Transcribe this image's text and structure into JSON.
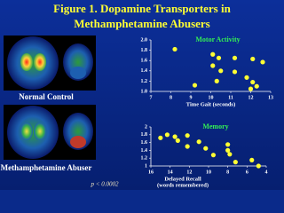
{
  "title": [
    "Figure 1. Dopamine Transporters in",
    "Methamphetamine Abusers"
  ],
  "images": [
    {
      "label": "Normal Control"
    },
    {
      "label": "Methamphetamine Abuser"
    }
  ],
  "footnote": "p < 0.0002",
  "chart_data": [
    {
      "type": "scatter",
      "title": "Motor Activity",
      "xlabel": "Time Gait (seconds)",
      "color": "#ffff33",
      "x": [
        8.2,
        10.1,
        10.4,
        11.2,
        12.1,
        12.6,
        10.1,
        10.5,
        11.2,
        11.8,
        10.3,
        12.1,
        12.3,
        9.2,
        12.0
      ],
      "values": [
        1.82,
        1.72,
        1.65,
        1.65,
        1.63,
        1.57,
        1.5,
        1.4,
        1.38,
        1.27,
        1.2,
        1.18,
        1.1,
        1.12,
        1.05
      ],
      "xlim": [
        7,
        13
      ],
      "xticks": [
        7,
        8,
        9,
        10,
        11,
        12,
        13
      ],
      "ylim": [
        1,
        2
      ],
      "yticks": [
        {
          "value": 1,
          "label": "1.0"
        },
        1.2,
        1.4,
        1.6,
        1.8,
        {
          "value": 2,
          "label": "2.0"
        }
      ]
    },
    {
      "type": "scatter",
      "title": "Memory",
      "xlabel": [
        "Delayed Recall",
        "(words remembered)"
      ],
      "color": "#ffff33",
      "x": [
        15,
        14.3,
        13.5,
        12.2,
        13.2,
        11,
        12.2,
        10.3,
        8,
        8,
        7.8,
        9.5,
        7.2,
        5.5,
        4.8
      ],
      "values": [
        1.72,
        1.8,
        1.75,
        1.78,
        1.65,
        1.62,
        1.5,
        1.45,
        1.55,
        1.4,
        1.3,
        1.28,
        1.1,
        1.15,
        1.0
      ],
      "xlim": [
        16,
        4
      ],
      "xticks": [
        16,
        14,
        12,
        10,
        8,
        6,
        4
      ],
      "ylim": [
        1,
        2
      ],
      "yticks": [
        1,
        1.2,
        1.4,
        1.6,
        1.8,
        2
      ]
    }
  ]
}
